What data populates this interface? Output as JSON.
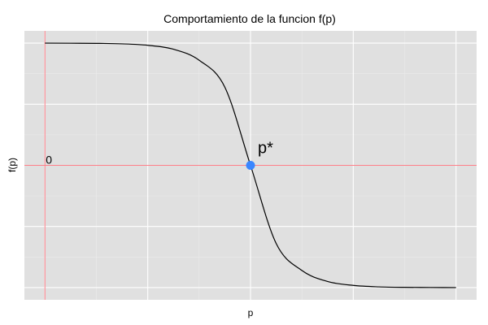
{
  "chart_data": {
    "type": "line",
    "title": "Comportamiento de la funcion f(p)",
    "xlabel": "p",
    "ylabel": "f(p)",
    "xlim": [
      -0.2,
      4.2
    ],
    "ylim": [
      -1.1,
      1.1
    ],
    "grid": true,
    "legend": "none",
    "series": [
      {
        "x": [
          0,
          0.25,
          0.5,
          0.75,
          1,
          1.25,
          1.5,
          1.75,
          2,
          2.25,
          2.5,
          2.75,
          3,
          3.25,
          3.5,
          3.75,
          4
        ],
        "y": [
          1,
          0.999,
          0.998,
          0.994,
          0.982,
          0.95,
          0.86,
          0.64,
          0,
          -0.64,
          -0.86,
          -0.95,
          -0.982,
          -0.994,
          -0.998,
          -0.999,
          -1
        ]
      }
    ],
    "reference_lines": {
      "horizontal_y": 0,
      "vertical_x": 0,
      "color": "#ff7f89"
    },
    "annotations": [
      {
        "text": "0",
        "x": 0,
        "y": 0
      },
      {
        "text": "p*",
        "x": 2,
        "y": 0
      }
    ],
    "highlight_point": {
      "x": 2,
      "y": 0,
      "color": "#3a86ff"
    },
    "colors": {
      "panel": "#e0e0e0",
      "grid_major": "#ffffff",
      "line": "#000000"
    }
  }
}
